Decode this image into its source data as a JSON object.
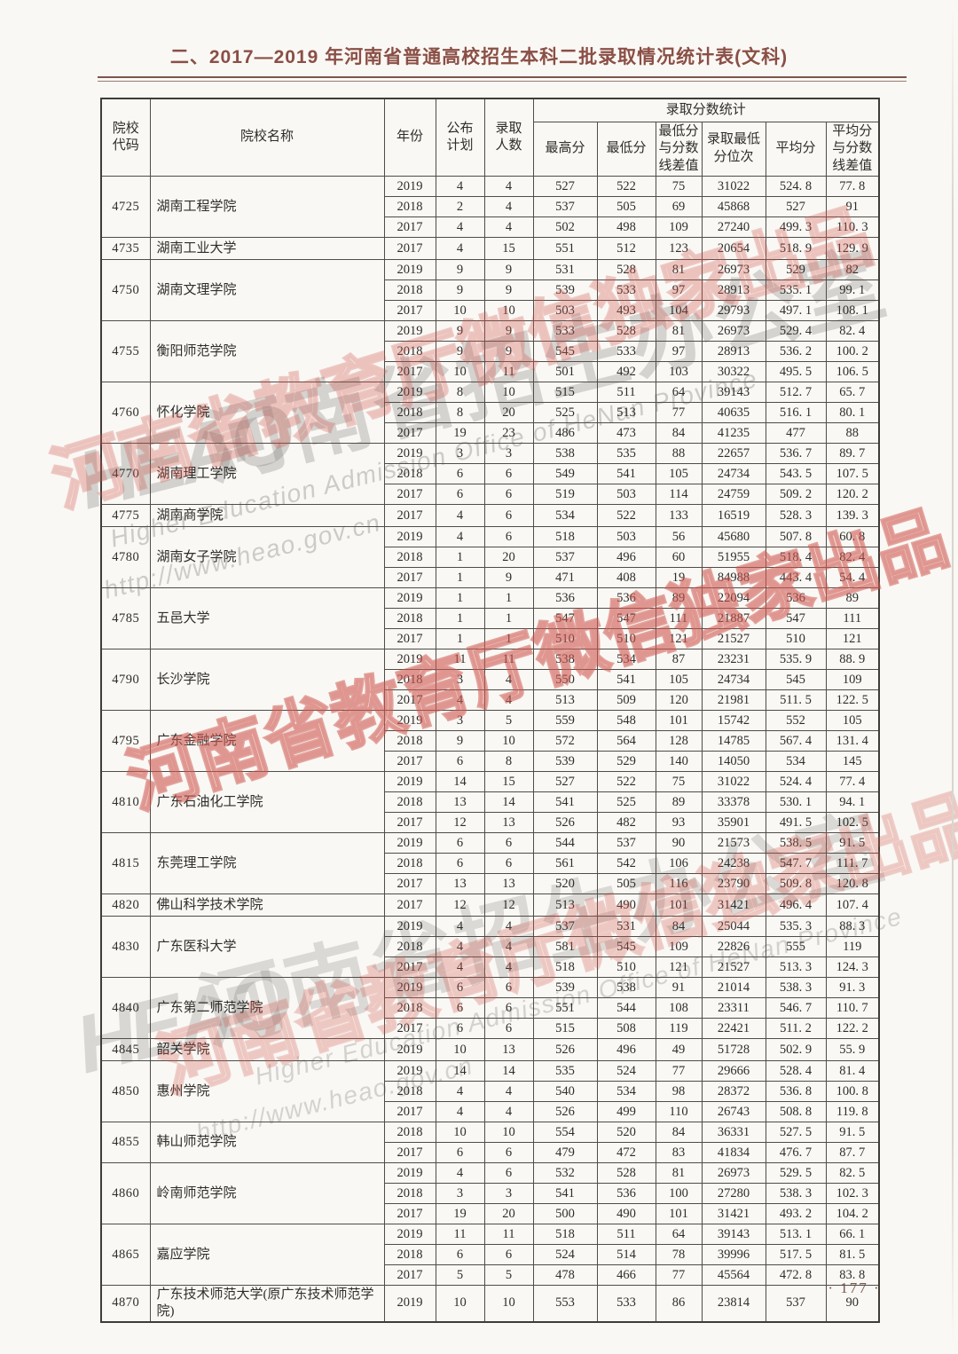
{
  "page": {
    "title": "二、2017—2019 年河南省普通高校招生本科二批录取情况统计表(文科)",
    "page_number": "· 177 ·"
  },
  "table": {
    "header": {
      "col_code": "院校\n代码",
      "col_name": "院校名称",
      "col_year": "年份",
      "col_plan": "公布\n计划",
      "col_admitted": "录取\n人数",
      "group_stats": "录取分数统计",
      "col_max": "最高分",
      "col_min": "最低分",
      "col_min_diff": "最低分\n与分数\n线差值",
      "col_min_rank": "录取最低\n分位次",
      "col_avg": "平均分",
      "col_avg_diff": "平均分\n与分数\n线差值"
    },
    "groups": [
      {
        "code": "4725",
        "name": "湖南工程学院",
        "rows": [
          [
            "2019",
            "4",
            "4",
            "527",
            "522",
            "75",
            "31022",
            "524. 8",
            "77. 8"
          ],
          [
            "2018",
            "2",
            "4",
            "537",
            "505",
            "69",
            "45868",
            "527",
            "91"
          ],
          [
            "2017",
            "4",
            "4",
            "502",
            "498",
            "109",
            "27240",
            "499. 3",
            "110. 3"
          ]
        ]
      },
      {
        "code": "4735",
        "name": "湖南工业大学",
        "rows": [
          [
            "2017",
            "4",
            "15",
            "551",
            "512",
            "123",
            "20654",
            "518. 9",
            "129. 9"
          ]
        ]
      },
      {
        "code": "4750",
        "name": "湖南文理学院",
        "rows": [
          [
            "2019",
            "9",
            "9",
            "531",
            "528",
            "81",
            "26973",
            "529",
            "82"
          ],
          [
            "2018",
            "9",
            "9",
            "539",
            "533",
            "97",
            "28913",
            "535. 1",
            "99. 1"
          ],
          [
            "2017",
            "10",
            "10",
            "503",
            "493",
            "104",
            "29793",
            "497. 1",
            "108. 1"
          ]
        ]
      },
      {
        "code": "4755",
        "name": "衡阳师范学院",
        "rows": [
          [
            "2019",
            "9",
            "9",
            "533",
            "528",
            "81",
            "26973",
            "529. 4",
            "82. 4"
          ],
          [
            "2018",
            "9",
            "9",
            "545",
            "533",
            "97",
            "28913",
            "536. 2",
            "100. 2"
          ],
          [
            "2017",
            "10",
            "11",
            "501",
            "492",
            "103",
            "30322",
            "495. 5",
            "106. 5"
          ]
        ]
      },
      {
        "code": "4760",
        "name": "怀化学院",
        "rows": [
          [
            "2019",
            "8",
            "10",
            "515",
            "511",
            "64",
            "39143",
            "512. 7",
            "65. 7"
          ],
          [
            "2018",
            "8",
            "20",
            "525",
            "513",
            "77",
            "40635",
            "516. 1",
            "80. 1"
          ],
          [
            "2017",
            "19",
            "23",
            "486",
            "473",
            "84",
            "41235",
            "477",
            "88"
          ]
        ]
      },
      {
        "code": "4770",
        "name": "湖南理工学院",
        "rows": [
          [
            "2019",
            "3",
            "3",
            "538",
            "535",
            "88",
            "22657",
            "536. 7",
            "89. 7"
          ],
          [
            "2018",
            "6",
            "6",
            "549",
            "541",
            "105",
            "24734",
            "543. 5",
            "107. 5"
          ],
          [
            "2017",
            "6",
            "6",
            "519",
            "503",
            "114",
            "24759",
            "509. 2",
            "120. 2"
          ]
        ]
      },
      {
        "code": "4775",
        "name": "湖南商学院",
        "rows": [
          [
            "2017",
            "4",
            "6",
            "534",
            "522",
            "133",
            "16519",
            "528. 3",
            "139. 3"
          ]
        ]
      },
      {
        "code": "4780",
        "name": "湖南女子学院",
        "rows": [
          [
            "2019",
            "4",
            "6",
            "518",
            "503",
            "56",
            "45680",
            "507. 8",
            "60. 8"
          ],
          [
            "2018",
            "1",
            "20",
            "537",
            "496",
            "60",
            "51955",
            "518. 4",
            "82. 4"
          ],
          [
            "2017",
            "1",
            "9",
            "471",
            "408",
            "19",
            "84988",
            "443. 4",
            "54. 4"
          ]
        ]
      },
      {
        "code": "4785",
        "name": "五邑大学",
        "rows": [
          [
            "2019",
            "1",
            "1",
            "536",
            "536",
            "89",
            "22094",
            "536",
            "89"
          ],
          [
            "2018",
            "1",
            "1",
            "547",
            "547",
            "111",
            "21887",
            "547",
            "111"
          ],
          [
            "2017",
            "1",
            "1",
            "510",
            "510",
            "121",
            "21527",
            "510",
            "121"
          ]
        ]
      },
      {
        "code": "4790",
        "name": "长沙学院",
        "rows": [
          [
            "2019",
            "11",
            "11",
            "538",
            "534",
            "87",
            "23231",
            "535. 9",
            "88. 9"
          ],
          [
            "2018",
            "3",
            "4",
            "550",
            "541",
            "105",
            "24734",
            "545",
            "109"
          ],
          [
            "2017",
            "4",
            "4",
            "513",
            "509",
            "120",
            "21981",
            "511. 5",
            "122. 5"
          ]
        ]
      },
      {
        "code": "4795",
        "name": "广东金融学院",
        "rows": [
          [
            "2019",
            "3",
            "5",
            "559",
            "548",
            "101",
            "15742",
            "552",
            "105"
          ],
          [
            "2018",
            "9",
            "10",
            "572",
            "564",
            "128",
            "14785",
            "567. 4",
            "131. 4"
          ],
          [
            "2017",
            "6",
            "8",
            "539",
            "529",
            "140",
            "14050",
            "534",
            "145"
          ]
        ]
      },
      {
        "code": "4810",
        "name": "广东石油化工学院",
        "rows": [
          [
            "2019",
            "14",
            "15",
            "527",
            "522",
            "75",
            "31022",
            "524. 4",
            "77. 4"
          ],
          [
            "2018",
            "13",
            "14",
            "541",
            "525",
            "89",
            "33378",
            "530. 1",
            "94. 1"
          ],
          [
            "2017",
            "12",
            "13",
            "526",
            "482",
            "93",
            "35901",
            "491. 5",
            "102. 5"
          ]
        ]
      },
      {
        "code": "4815",
        "name": "东莞理工学院",
        "rows": [
          [
            "2019",
            "6",
            "6",
            "544",
            "537",
            "90",
            "21573",
            "538. 5",
            "91. 5"
          ],
          [
            "2018",
            "6",
            "6",
            "561",
            "542",
            "106",
            "24238",
            "547. 7",
            "111. 7"
          ],
          [
            "2017",
            "13",
            "13",
            "520",
            "505",
            "116",
            "23790",
            "509. 8",
            "120. 8"
          ]
        ]
      },
      {
        "code": "4820",
        "name": "佛山科学技术学院",
        "rows": [
          [
            "2017",
            "12",
            "12",
            "513",
            "490",
            "101",
            "31421",
            "496. 4",
            "107. 4"
          ]
        ]
      },
      {
        "code": "4830",
        "name": "广东医科大学",
        "rows": [
          [
            "2019",
            "4",
            "4",
            "537",
            "531",
            "84",
            "25044",
            "535. 3",
            "88. 3"
          ],
          [
            "2018",
            "4",
            "4",
            "581",
            "545",
            "109",
            "22826",
            "555",
            "119"
          ],
          [
            "2017",
            "4",
            "4",
            "518",
            "510",
            "121",
            "21527",
            "513. 3",
            "124. 3"
          ]
        ]
      },
      {
        "code": "4840",
        "name": "广东第二师范学院",
        "rows": [
          [
            "2019",
            "6",
            "6",
            "539",
            "538",
            "91",
            "21014",
            "538. 3",
            "91. 3"
          ],
          [
            "2018",
            "6",
            "6",
            "551",
            "544",
            "108",
            "23311",
            "546. 7",
            "110. 7"
          ],
          [
            "2017",
            "6",
            "6",
            "515",
            "508",
            "119",
            "22421",
            "511. 2",
            "122. 2"
          ]
        ]
      },
      {
        "code": "4845",
        "name": "韶关学院",
        "rows": [
          [
            "2019",
            "10",
            "13",
            "526",
            "496",
            "49",
            "51728",
            "502. 9",
            "55. 9"
          ]
        ]
      },
      {
        "code": "4850",
        "name": "惠州学院",
        "rows": [
          [
            "2019",
            "14",
            "14",
            "535",
            "524",
            "77",
            "29666",
            "528. 4",
            "81. 4"
          ],
          [
            "2018",
            "4",
            "4",
            "540",
            "534",
            "98",
            "28372",
            "536. 8",
            "100. 8"
          ],
          [
            "2017",
            "4",
            "4",
            "526",
            "499",
            "110",
            "26743",
            "508. 8",
            "119. 8"
          ]
        ]
      },
      {
        "code": "4855",
        "name": "韩山师范学院",
        "rows": [
          [
            "2018",
            "10",
            "10",
            "554",
            "520",
            "84",
            "36331",
            "527. 5",
            "91. 5"
          ],
          [
            "2017",
            "6",
            "6",
            "479",
            "472",
            "83",
            "41834",
            "476. 7",
            "87. 7"
          ]
        ]
      },
      {
        "code": "4860",
        "name": "岭南师范学院",
        "rows": [
          [
            "2019",
            "4",
            "6",
            "532",
            "528",
            "81",
            "26973",
            "529. 5",
            "82. 5"
          ],
          [
            "2018",
            "3",
            "3",
            "541",
            "536",
            "100",
            "27280",
            "538. 3",
            "102. 3"
          ],
          [
            "2017",
            "19",
            "20",
            "500",
            "490",
            "101",
            "31421",
            "493. 2",
            "104. 2"
          ]
        ]
      },
      {
        "code": "4865",
        "name": "嘉应学院",
        "rows": [
          [
            "2019",
            "11",
            "11",
            "518",
            "511",
            "64",
            "39143",
            "513. 1",
            "66. 1"
          ],
          [
            "2018",
            "6",
            "6",
            "524",
            "514",
            "78",
            "39996",
            "517. 5",
            "81. 5"
          ],
          [
            "2017",
            "5",
            "5",
            "478",
            "466",
            "77",
            "45564",
            "472. 8",
            "83. 8"
          ]
        ]
      },
      {
        "code": "4870",
        "name": "广东技术师范大学(原广东技术师范学院)",
        "rows": [
          [
            "2019",
            "10",
            "10",
            "553",
            "533",
            "86",
            "23814",
            "537",
            "90"
          ]
        ]
      }
    ]
  },
  "watermarks": {
    "red_text": "河南省教育厅微信独家出品",
    "gray_logo": "HEAO",
    "gray_text": "河南省招生办公室",
    "gray_en_line1": "Higher Education Admission Office of HeNan Province",
    "gray_en_line2": "http://www.heao.gov.cn",
    "red_color": "#cd544c",
    "gray_color": "#807e7b"
  }
}
